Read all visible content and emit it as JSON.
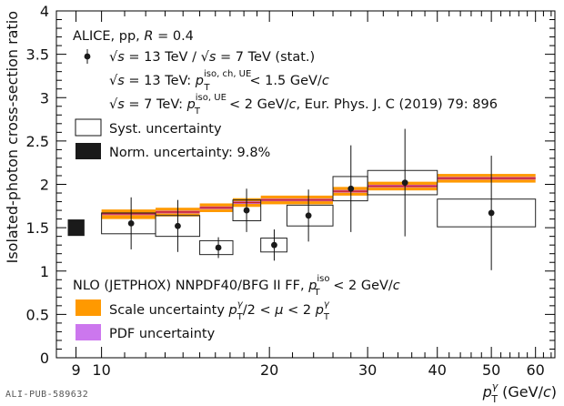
{
  "chart_data": {
    "type": "scatter",
    "ylabel": "Isolated-photon cross-section ratio",
    "xlabel": "p_T^γ (GeV/c)",
    "xscale": "log",
    "xlim": [
      8.3,
      65
    ],
    "ylim": [
      0,
      4
    ],
    "x_ticks": [
      9,
      10,
      20,
      30,
      40,
      50,
      60
    ],
    "y_ticks": [
      0,
      0.5,
      1,
      1.5,
      2,
      2.5,
      3,
      3.5,
      4
    ],
    "experiment": "ALICE, pp, R = 0.4",
    "legend_data": "√s = 13 TeV / √s = 7 TeV (stat.)",
    "legend_line2": "√s = 13 TeV: p_T^iso, ch, UE < 1.5 GeV/c",
    "legend_line3": "√s = 7 TeV: p_T^iso, UE < 2 GeV/c, Eur. Phys. J. C (2019) 79: 896",
    "legend_syst": "Syst. uncertainty",
    "legend_norm": "Norm. uncertainty: 9.8%",
    "theory_label": "NLO (JETPHOX) NNPDF40/BFG II FF, p_T^iso < 2 GeV/c",
    "legend_scale": "Scale uncertainty p_T^γ/2 < μ < 2 p_T^γ",
    "legend_pdf": "PDF uncertainty",
    "norm_uncertainty": 0.098,
    "norm_box_y": [
      1.405,
      1.595
    ],
    "colors": {
      "scale": "#ff9900",
      "pdf": "#cc77ee",
      "central": "#cc2222",
      "data": "#1a1a1a",
      "norm": "#1a1a1a"
    },
    "data_points": [
      {
        "x": 11.3,
        "x_lo": 10,
        "x_hi": 12.5,
        "y": 1.55,
        "stat": 0.3,
        "syst": 0.12
      },
      {
        "x": 13.7,
        "x_lo": 12.5,
        "x_hi": 15,
        "y": 1.52,
        "stat": 0.3,
        "syst": 0.12
      },
      {
        "x": 16.2,
        "x_lo": 15,
        "x_hi": 17.2,
        "y": 1.27,
        "stat": 0.12,
        "syst": 0.08
      },
      {
        "x": 18.2,
        "x_lo": 17.2,
        "x_hi": 19.3,
        "y": 1.7,
        "stat": 0.25,
        "syst": 0.12
      },
      {
        "x": 20.4,
        "x_lo": 19.3,
        "x_hi": 21.5,
        "y": 1.3,
        "stat": 0.18,
        "syst": 0.08
      },
      {
        "x": 23.5,
        "x_lo": 21.5,
        "x_hi": 26,
        "y": 1.64,
        "stat": 0.3,
        "syst": 0.12
      },
      {
        "x": 28,
        "x_lo": 26,
        "x_hi": 30,
        "y": 1.95,
        "stat": 0.5,
        "syst": 0.14
      },
      {
        "x": 35,
        "x_lo": 30,
        "x_hi": 40,
        "y": 2.02,
        "stat": 0.62,
        "syst": 0.14
      },
      {
        "x": 50,
        "x_lo": 40,
        "x_hi": 60,
        "y": 1.67,
        "stat": 0.66,
        "syst": 0.16
      }
    ],
    "theory_bands": [
      {
        "x_lo": 10,
        "x_hi": 12.5,
        "y": 1.66,
        "scale_lo": 1.6,
        "scale_hi": 1.71,
        "pdf_lo": 1.645,
        "pdf_hi": 1.675
      },
      {
        "x_lo": 12.5,
        "x_hi": 15,
        "y": 1.68,
        "scale_lo": 1.63,
        "scale_hi": 1.73,
        "pdf_lo": 1.665,
        "pdf_hi": 1.695
      },
      {
        "x_lo": 15,
        "x_hi": 17.2,
        "y": 1.73,
        "scale_lo": 1.68,
        "scale_hi": 1.78,
        "pdf_lo": 1.715,
        "pdf_hi": 1.745
      },
      {
        "x_lo": 17.2,
        "x_hi": 19.3,
        "y": 1.79,
        "scale_lo": 1.74,
        "scale_hi": 1.84,
        "pdf_lo": 1.775,
        "pdf_hi": 1.805
      },
      {
        "x_lo": 19.3,
        "x_hi": 26,
        "y": 1.82,
        "scale_lo": 1.77,
        "scale_hi": 1.87,
        "pdf_lo": 1.805,
        "pdf_hi": 1.835
      },
      {
        "x_lo": 26,
        "x_hi": 30,
        "y": 1.92,
        "scale_lo": 1.87,
        "scale_hi": 1.97,
        "pdf_lo": 1.905,
        "pdf_hi": 1.935
      },
      {
        "x_lo": 30,
        "x_hi": 40,
        "y": 1.98,
        "scale_lo": 1.93,
        "scale_hi": 2.03,
        "pdf_lo": 1.965,
        "pdf_hi": 1.995
      },
      {
        "x_lo": 40,
        "x_hi": 60,
        "y": 2.07,
        "scale_lo": 2.02,
        "scale_hi": 2.12,
        "pdf_lo": 2.055,
        "pdf_hi": 2.085
      }
    ]
  },
  "footer": {
    "pub_id": "ALI-PUB-589632"
  }
}
